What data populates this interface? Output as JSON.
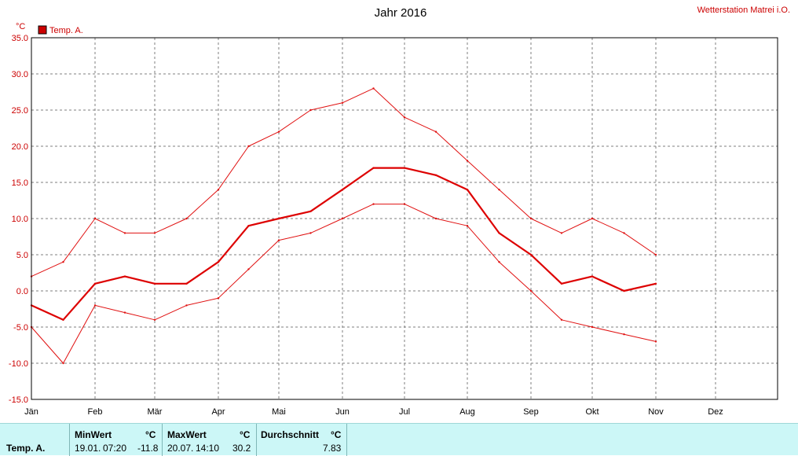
{
  "header": {
    "title": "Jahr 2016",
    "station": "Wetterstation Matrei i.O.",
    "unit": "°C",
    "legend_label": "Temp. A."
  },
  "colors": {
    "series": "#dd0000",
    "band": "#e01010",
    "axis": "#000000",
    "grid": "#7f7f7f",
    "stats_bg": "#ccf7f7"
  },
  "chart_data": {
    "type": "line",
    "title": "Jahr 2016",
    "ylabel": "°C",
    "ylim": [
      -15,
      35
    ],
    "yticks": [
      "35.0",
      "30.0",
      "25.0",
      "20.0",
      "15.0",
      "10.0",
      "5.0",
      "0.0",
      "-5.0",
      "-10.0",
      "-15.0"
    ],
    "xlabels": [
      "Jän",
      "Feb",
      "Mär",
      "Apr",
      "Mai",
      "Jun",
      "Jul",
      "Aug",
      "Sep",
      "Okt",
      "Nov",
      "Dez"
    ],
    "grid": true,
    "legend": "top-left",
    "x_unit": "month",
    "month_points": [
      1,
      2,
      3,
      4,
      5,
      6,
      7,
      8,
      9,
      10,
      11,
      12,
      13
    ],
    "series": [
      {
        "name": "Temp. A.",
        "role": "max",
        "values": [
          2,
          4,
          10,
          8,
          8,
          10,
          14,
          20,
          22,
          25,
          26,
          28,
          24,
          22,
          18,
          14,
          10,
          8,
          10,
          8,
          5
        ]
      },
      {
        "name": "Temp. A.",
        "role": "mean",
        "values": [
          -2,
          -4,
          1,
          2,
          1,
          1,
          4,
          9,
          10,
          11,
          14,
          17,
          17,
          16,
          14,
          8,
          5,
          1,
          2,
          0,
          1
        ]
      },
      {
        "name": "Temp. A.",
        "role": "min",
        "values": [
          -5,
          -10,
          -2,
          -3,
          -4,
          -2,
          -1,
          3,
          7,
          8,
          10,
          12,
          12,
          10,
          9,
          4,
          0,
          -4,
          -5,
          -6,
          -7
        ]
      }
    ],
    "x": [
      1,
      1.5,
      2,
      2.5,
      3,
      3.5,
      4,
      4.5,
      5,
      5.5,
      6,
      6.5,
      7,
      7.5,
      8,
      8.5,
      9,
      9.5,
      10,
      10.5,
      11
    ]
  },
  "stats": {
    "row_label": "Temp. A.",
    "min": {
      "header": "MinWert",
      "unit": "°C",
      "date": "19.01.",
      "time": "07:20",
      "value": "-11.8"
    },
    "max": {
      "header": "MaxWert",
      "unit": "°C",
      "date": "20.07.",
      "time": "14:10",
      "value": "30.2"
    },
    "avg": {
      "header": "Durchschnitt",
      "unit": "°C",
      "value": "7.83"
    }
  }
}
